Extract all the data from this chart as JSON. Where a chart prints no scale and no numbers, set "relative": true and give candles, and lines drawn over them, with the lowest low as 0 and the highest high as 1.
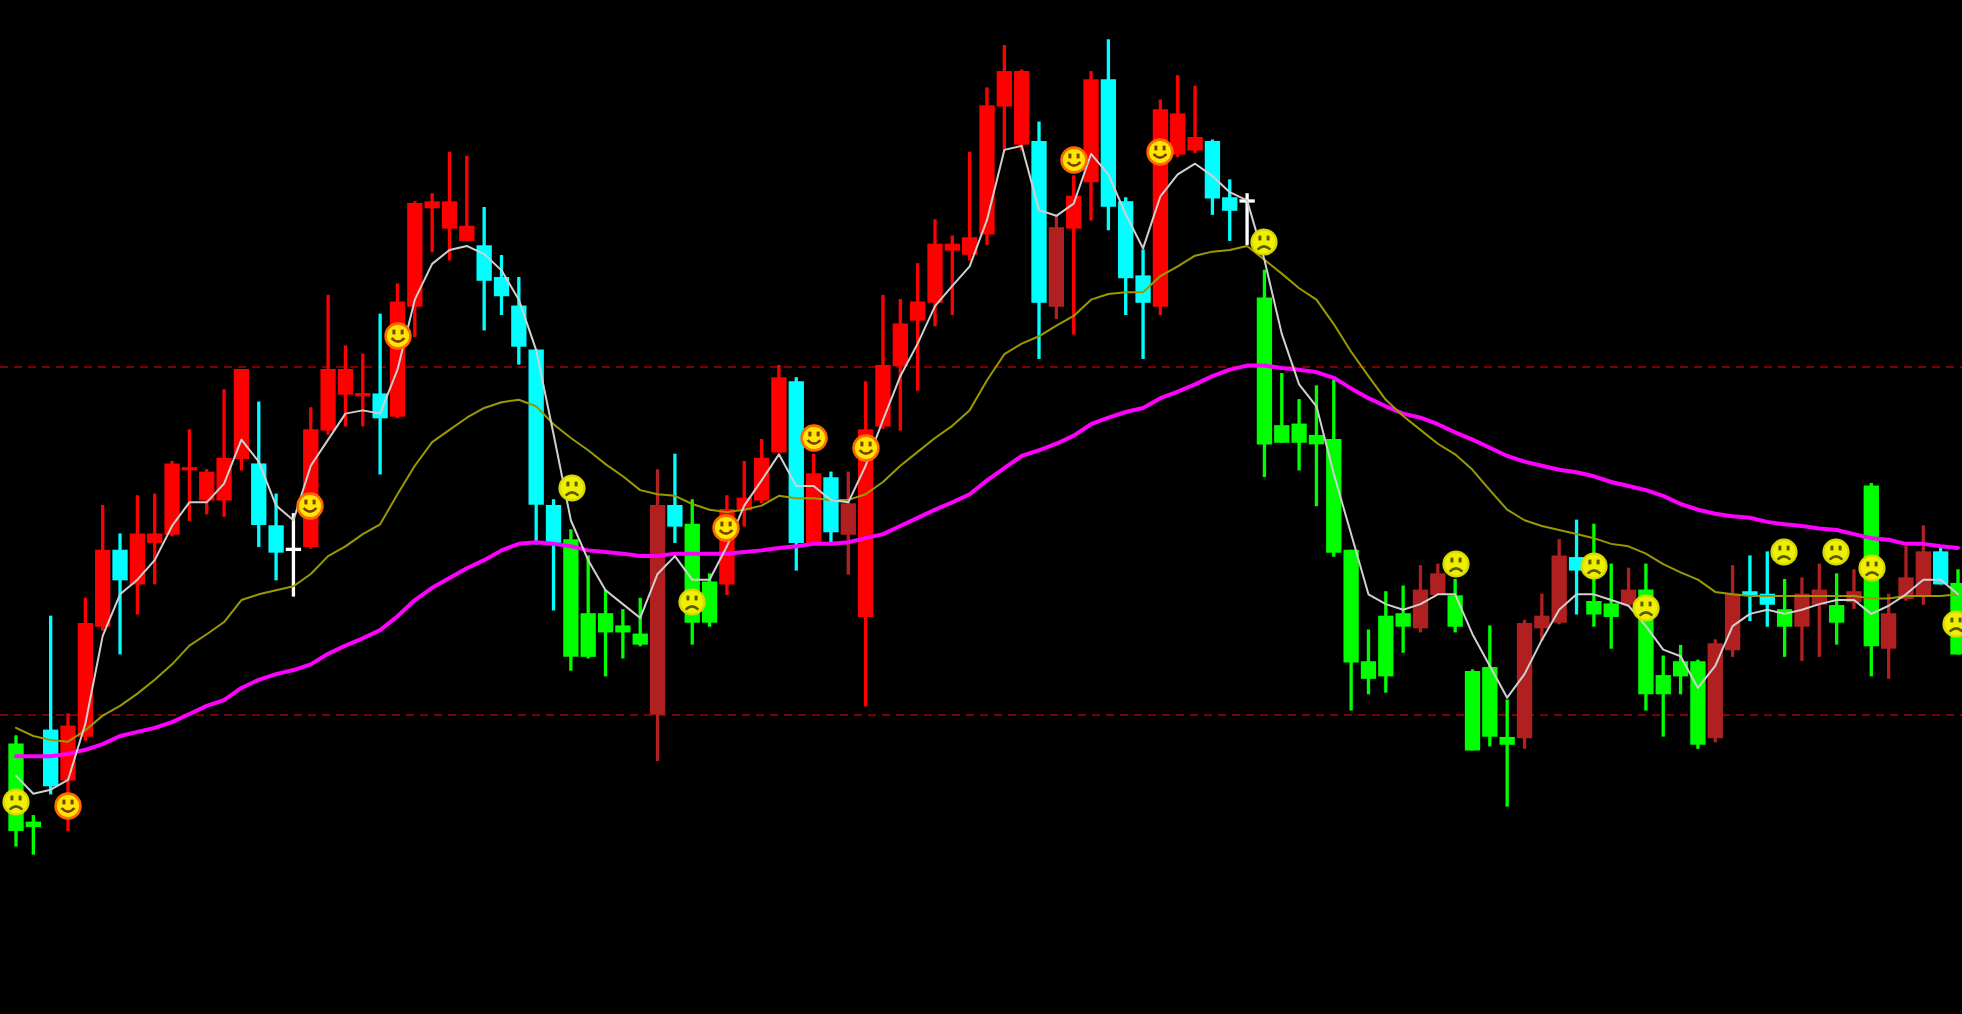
{
  "chart_data": {
    "type": "candlestick",
    "relative": true,
    "categories": [
      null,
      null,
      null,
      null,
      null,
      null,
      null,
      null,
      null,
      null,
      null,
      null,
      null,
      null,
      null,
      null,
      null,
      null,
      null,
      null,
      null,
      null,
      null,
      null,
      null,
      null,
      null,
      null,
      null,
      null,
      null,
      null,
      null,
      null,
      null,
      null,
      null,
      null,
      null,
      null,
      null,
      null,
      null,
      null,
      null,
      null,
      null,
      null,
      null,
      null,
      null,
      null,
      null,
      null,
      null,
      null,
      null,
      null,
      null,
      null,
      null,
      null,
      null,
      null,
      null,
      null,
      null,
      null,
      null,
      null,
      null,
      null,
      null,
      null,
      null,
      null,
      null,
      null,
      null,
      null,
      null,
      null,
      null,
      null,
      null,
      null,
      null,
      null,
      null,
      null,
      null,
      null,
      null,
      null,
      null,
      null,
      null,
      null,
      null,
      null,
      null,
      null,
      null,
      null,
      null,
      null,
      null,
      null,
      null,
      null,
      null,
      null,
      null
    ],
    "ohlc": [
      [
        0.135,
        0.145,
        0.01,
        0.029
      ],
      [
        0.039,
        0.047,
        0,
        0.034
      ],
      [
        0.152,
        0.292,
        0.074,
        0.084
      ],
      [
        0.091,
        0.172,
        0.029,
        0.157
      ],
      [
        0.145,
        0.314,
        0.14,
        0.283
      ],
      [
        0.28,
        0.428,
        0.275,
        0.373
      ],
      [
        0.373,
        0.393,
        0.246,
        0.337
      ],
      [
        0.332,
        0.44,
        0.295,
        0.393
      ],
      [
        0.383,
        0.442,
        0.332,
        0.393
      ],
      [
        0.393,
        0.482,
        0.391,
        0.479
      ],
      [
        0.472,
        0.521,
        0.41,
        0.474
      ],
      [
        0.435,
        0.472,
        0.418,
        0.469
      ],
      [
        0.435,
        0.57,
        0.415,
        0.486
      ],
      [
        0.486,
        0.595,
        0.472,
        0.595
      ],
      [
        0.479,
        0.555,
        0.378,
        0.405
      ],
      [
        0.403,
        0.442,
        0.337,
        0.371
      ],
      [
        0.373,
        0.418,
        0.317,
        0.373
      ],
      [
        0.378,
        0.548,
        0.376,
        0.521
      ],
      [
        0.521,
        0.686,
        0.516,
        0.595
      ],
      [
        0.565,
        0.624,
        0.526,
        0.595
      ],
      [
        0.563,
        0.614,
        0.526,
        0.565
      ],
      [
        0.565,
        0.663,
        0.467,
        0.536
      ],
      [
        0.538,
        0.7,
        0.536,
        0.678
      ],
      [
        0.673,
        0.801,
        0.636,
        0.799
      ],
      [
        0.794,
        0.811,
        0.74,
        0.801
      ],
      [
        0.769,
        0.862,
        0.73,
        0.801
      ],
      [
        0.754,
        0.857,
        0.754,
        0.771
      ],
      [
        0.747,
        0.794,
        0.644,
        0.705
      ],
      [
        0.708,
        0.735,
        0.663,
        0.686
      ],
      [
        0.673,
        0.708,
        0.602,
        0.624
      ],
      [
        0.619,
        0.619,
        0.381,
        0.43
      ],
      [
        0.428,
        0.435,
        0.3,
        0.383
      ],
      [
        0.386,
        0.398,
        0.226,
        0.243
      ],
      [
        0.295,
        0.366,
        0.241,
        0.243
      ],
      [
        0.295,
        0.324,
        0.219,
        0.273
      ],
      [
        0.28,
        0.3,
        0.241,
        0.273
      ],
      [
        0.27,
        0.314,
        0.256,
        0.258
      ],
      [
        0.172,
        0.472,
        0.115,
        0.428
      ],
      [
        0.428,
        0.491,
        0.383,
        0.403
      ],
      [
        0.405,
        0.435,
        0.258,
        0.285
      ],
      [
        0.334,
        0.344,
        0.28,
        0.285
      ],
      [
        0.332,
        0.44,
        0.319,
        0.423
      ],
      [
        0.423,
        0.482,
        0.403,
        0.437
      ],
      [
        0.435,
        0.509,
        0.432,
        0.486
      ],
      [
        0.494,
        0.6,
        0.494,
        0.585
      ],
      [
        0.58,
        0.585,
        0.349,
        0.383
      ],
      [
        0.383,
        0.491,
        0.383,
        0.467
      ],
      [
        0.462,
        0.469,
        0.381,
        0.396
      ],
      [
        0.393,
        0.469,
        0.344,
        0.43
      ],
      [
        0.292,
        0.58,
        0.182,
        0.521
      ],
      [
        0.526,
        0.686,
        0.523,
        0.6
      ],
      [
        0.6,
        0.681,
        0.521,
        0.651
      ],
      [
        0.656,
        0.725,
        0.57,
        0.678
      ],
      [
        0.678,
        0.779,
        0.649,
        0.749
      ],
      [
        0.742,
        0.759,
        0.663,
        0.749
      ],
      [
        0.737,
        0.862,
        0.73,
        0.757
      ],
      [
        0.762,
        0.941,
        0.749,
        0.919
      ],
      [
        0.919,
        0.993,
        0.865,
        0.961
      ],
      [
        0.872,
        0.963,
        0.865,
        0.961
      ],
      [
        0.875,
        0.899,
        0.609,
        0.678
      ],
      [
        0.673,
        0.784,
        0.658,
        0.769
      ],
      [
        0.769,
        0.833,
        0.639,
        0.808
      ],
      [
        0.826,
        0.961,
        0.779,
        0.951
      ],
      [
        0.951,
        1,
        0.767,
        0.796
      ],
      [
        0.801,
        0.806,
        0.663,
        0.708
      ],
      [
        0.71,
        0.742,
        0.609,
        0.678
      ],
      [
        0.673,
        0.926,
        0.663,
        0.914
      ],
      [
        0.86,
        0.956,
        0.857,
        0.909
      ],
      [
        0.865,
        0.943,
        0.862,
        0.88
      ],
      [
        0.875,
        0.877,
        0.786,
        0.806
      ],
      [
        0.806,
        0.828,
        0.754,
        0.791
      ],
      [
        0.803,
        0.811,
        0.749,
        0.801
      ],
      [
        0.683,
        0.717,
        0.464,
        0.504
      ],
      [
        0.526,
        0.59,
        0.506,
        0.506
      ],
      [
        0.528,
        0.558,
        0.472,
        0.506
      ],
      [
        0.514,
        0.575,
        0.428,
        0.504
      ],
      [
        0.509,
        0.582,
        0.366,
        0.371
      ],
      [
        0.373,
        0.373,
        0.177,
        0.236
      ],
      [
        0.236,
        0.275,
        0.197,
        0.216
      ],
      [
        0.292,
        0.322,
        0.199,
        0.219
      ],
      [
        0.295,
        0.329,
        0.248,
        0.28
      ],
      [
        0.278,
        0.354,
        0.273,
        0.324
      ],
      [
        0.319,
        0.356,
        0.319,
        0.344
      ],
      [
        0.317,
        0.337,
        0.273,
        0.28
      ],
      [
        0.224,
        0.226,
        0.128,
        0.128
      ],
      [
        0.229,
        0.28,
        0.133,
        0.145
      ],
      [
        0.143,
        0.189,
        0.059,
        0.135
      ],
      [
        0.143,
        0.287,
        0.13,
        0.283
      ],
      [
        0.278,
        0.319,
        0.263,
        0.292
      ],
      [
        0.285,
        0.386,
        0.283,
        0.366
      ],
      [
        0.364,
        0.41,
        0.295,
        0.349
      ],
      [
        0.31,
        0.405,
        0.28,
        0.295
      ],
      [
        0.307,
        0.356,
        0.253,
        0.292
      ],
      [
        0.307,
        0.351,
        0.305,
        0.324
      ],
      [
        0.324,
        0.356,
        0.177,
        0.197
      ],
      [
        0.219,
        0.243,
        0.145,
        0.197
      ],
      [
        0.236,
        0.256,
        0.197,
        0.219
      ],
      [
        0.236,
        0.238,
        0.13,
        0.135
      ],
      [
        0.143,
        0.263,
        0.138,
        0.258
      ],
      [
        0.251,
        0.354,
        0.243,
        0.319
      ],
      [
        0.322,
        0.366,
        0.287,
        0.319
      ],
      [
        0.319,
        0.371,
        0.28,
        0.307
      ],
      [
        0.3,
        0.337,
        0.243,
        0.28
      ],
      [
        0.28,
        0.339,
        0.238,
        0.319
      ],
      [
        0.307,
        0.356,
        0.243,
        0.324
      ],
      [
        0.305,
        0.344,
        0.258,
        0.285
      ],
      [
        0.31,
        0.349,
        0.302,
        0.322
      ],
      [
        0.452,
        0.455,
        0.219,
        0.256
      ],
      [
        0.253,
        0.319,
        0.216,
        0.295
      ],
      [
        0.314,
        0.378,
        0.312,
        0.339
      ],
      [
        0.317,
        0.403,
        0.307,
        0.371
      ],
      [
        0.371,
        0.378,
        0.332,
        0.332
      ],
      [
        0.332,
        0.349,
        0.246,
        0.246
      ]
    ],
    "colors": [
      "#00ff00",
      "#00ff00",
      "#00ffff",
      "#ff0000",
      "#ff0000",
      "#ff0000",
      "#00ffff",
      "#ff0000",
      "#ff0000",
      "#ff0000",
      "#ff0000",
      "#ff0000",
      "#ff0000",
      "#ff0000",
      "#00ffff",
      "#00ffff",
      "#ffffff",
      "#ff0000",
      "#ff0000",
      "#ff0000",
      "#ff0000",
      "#00ffff",
      "#ff0000",
      "#ff0000",
      "#ff0000",
      "#ff0000",
      "#ff0000",
      "#00ffff",
      "#00ffff",
      "#00ffff",
      "#00ffff",
      "#00ffff",
      "#00ff00",
      "#00ff00",
      "#00ff00",
      "#00ff00",
      "#00ff00",
      "#b02020",
      "#00ffff",
      "#00ff00",
      "#00ff00",
      "#ff0000",
      "#ff0000",
      "#ff0000",
      "#ff0000",
      "#00ffff",
      "#ff0000",
      "#00ffff",
      "#b02020",
      "#ff0000",
      "#ff0000",
      "#ff0000",
      "#ff0000",
      "#ff0000",
      "#ff0000",
      "#ff0000",
      "#ff0000",
      "#ff0000",
      "#ff0000",
      "#00ffff",
      "#b02020",
      "#ff0000",
      "#ff0000",
      "#00ffff",
      "#00ffff",
      "#00ffff",
      "#ff0000",
      "#ff0000",
      "#ff0000",
      "#00ffff",
      "#00ffff",
      "#ffffff",
      "#00ff00",
      "#00ff00",
      "#00ff00",
      "#00ff00",
      "#00ff00",
      "#00ff00",
      "#00ff00",
      "#00ff00",
      "#00ff00",
      "#b02020",
      "#b02020",
      "#00ff00",
      "#00ff00",
      "#00ff00",
      "#00ff00",
      "#b02020",
      "#b02020",
      "#b02020",
      "#00ffff",
      "#00ff00",
      "#00ff00",
      "#b02020",
      "#00ff00",
      "#00ff00",
      "#00ff00",
      "#00ff00",
      "#b02020",
      "#b02020",
      "#00ffff",
      "#00ffff",
      "#00ff00",
      "#b02020",
      "#b02020",
      "#00ff00",
      "#b02020",
      "#00ff00",
      "#b02020",
      "#b02020",
      "#b02020",
      "#00ffff",
      "#00ff00"
    ],
    "series": [
      {
        "type": "line",
        "color": "#d0d0d0",
        "values": [
          0.096,
          0.074,
          0.079,
          0.091,
          0.16,
          0.268,
          0.319,
          0.337,
          0.361,
          0.403,
          0.432,
          0.432,
          0.455,
          0.509,
          0.482,
          0.428,
          0.41,
          0.477,
          0.509,
          0.541,
          0.545,
          0.541,
          0.595,
          0.681,
          0.725,
          0.742,
          0.747,
          0.737,
          0.717,
          0.681,
          0.619,
          0.516,
          0.41,
          0.361,
          0.324,
          0.307,
          0.29,
          0.344,
          0.366,
          0.337,
          0.337,
          0.378,
          0.428,
          0.459,
          0.491,
          0.452,
          0.452,
          0.435,
          0.432,
          0.477,
          0.533,
          0.587,
          0.627,
          0.673,
          0.698,
          0.722,
          0.779,
          0.865,
          0.87,
          0.791,
          0.784,
          0.799,
          0.86,
          0.835,
          0.786,
          0.744,
          0.808,
          0.835,
          0.848,
          0.833,
          0.813,
          0.803,
          0.73,
          0.639,
          0.577,
          0.55,
          0.467,
          0.393,
          0.319,
          0.307,
          0.3,
          0.307,
          0.319,
          0.319,
          0.27,
          0.231,
          0.192,
          0.221,
          0.263,
          0.3,
          0.319,
          0.319,
          0.312,
          0.305,
          0.28,
          0.251,
          0.243,
          0.204,
          0.231,
          0.28,
          0.295,
          0.3,
          0.295,
          0.3,
          0.307,
          0.312,
          0.312,
          0.295,
          0.305,
          0.319,
          0.337,
          0.337,
          0.319
        ]
      },
      {
        "type": "line",
        "color": "#9a9a00",
        "values": [
          0.155,
          0.145,
          0.14,
          0.138,
          0.152,
          0.17,
          0.182,
          0.197,
          0.214,
          0.233,
          0.256,
          0.27,
          0.285,
          0.312,
          0.319,
          0.324,
          0.329,
          0.344,
          0.366,
          0.378,
          0.393,
          0.405,
          0.442,
          0.477,
          0.506,
          0.521,
          0.536,
          0.548,
          0.555,
          0.558,
          0.55,
          0.528,
          0.511,
          0.496,
          0.479,
          0.464,
          0.447,
          0.442,
          0.44,
          0.43,
          0.423,
          0.42,
          0.423,
          0.428,
          0.44,
          0.437,
          0.437,
          0.435,
          0.435,
          0.442,
          0.457,
          0.477,
          0.494,
          0.511,
          0.526,
          0.545,
          0.582,
          0.614,
          0.627,
          0.636,
          0.649,
          0.661,
          0.681,
          0.688,
          0.69,
          0.69,
          0.71,
          0.722,
          0.735,
          0.74,
          0.742,
          0.747,
          0.73,
          0.713,
          0.695,
          0.681,
          0.651,
          0.617,
          0.587,
          0.558,
          0.538,
          0.521,
          0.504,
          0.491,
          0.472,
          0.447,
          0.423,
          0.41,
          0.403,
          0.398,
          0.393,
          0.388,
          0.381,
          0.378,
          0.369,
          0.356,
          0.346,
          0.337,
          0.322,
          0.319,
          0.317,
          0.317,
          0.317,
          0.317,
          0.317,
          0.317,
          0.317,
          0.314,
          0.314,
          0.317,
          0.317,
          0.317,
          0.319
        ]
      },
      {
        "type": "line",
        "color": "#ff00ff",
        "values": [
          0.12,
          0.12,
          0.12,
          0.123,
          0.128,
          0.135,
          0.145,
          0.15,
          0.155,
          0.162,
          0.172,
          0.182,
          0.189,
          0.204,
          0.214,
          0.221,
          0.226,
          0.233,
          0.246,
          0.256,
          0.265,
          0.275,
          0.292,
          0.312,
          0.327,
          0.339,
          0.351,
          0.361,
          0.373,
          0.381,
          0.383,
          0.381,
          0.378,
          0.373,
          0.371,
          0.369,
          0.366,
          0.366,
          0.369,
          0.369,
          0.369,
          0.369,
          0.371,
          0.373,
          0.376,
          0.378,
          0.381,
          0.381,
          0.383,
          0.388,
          0.393,
          0.403,
          0.413,
          0.423,
          0.432,
          0.442,
          0.459,
          0.474,
          0.489,
          0.496,
          0.504,
          0.514,
          0.528,
          0.536,
          0.543,
          0.548,
          0.56,
          0.568,
          0.577,
          0.587,
          0.595,
          0.6,
          0.6,
          0.597,
          0.595,
          0.592,
          0.585,
          0.572,
          0.56,
          0.55,
          0.541,
          0.536,
          0.528,
          0.518,
          0.509,
          0.499,
          0.489,
          0.482,
          0.477,
          0.472,
          0.469,
          0.464,
          0.457,
          0.452,
          0.447,
          0.44,
          0.43,
          0.423,
          0.418,
          0.415,
          0.413,
          0.408,
          0.405,
          0.403,
          0.4,
          0.398,
          0.393,
          0.388,
          0.386,
          0.381,
          0.381,
          0.378,
          0.376
        ]
      }
    ],
    "ref_lines": [
      {
        "axis": "y",
        "value": 0.6,
        "color": "#800000",
        "line_style": "dashed"
      },
      {
        "axis": "y",
        "value": 0.172,
        "color": "#800000",
        "line_style": "dashed"
      }
    ]
  }
}
